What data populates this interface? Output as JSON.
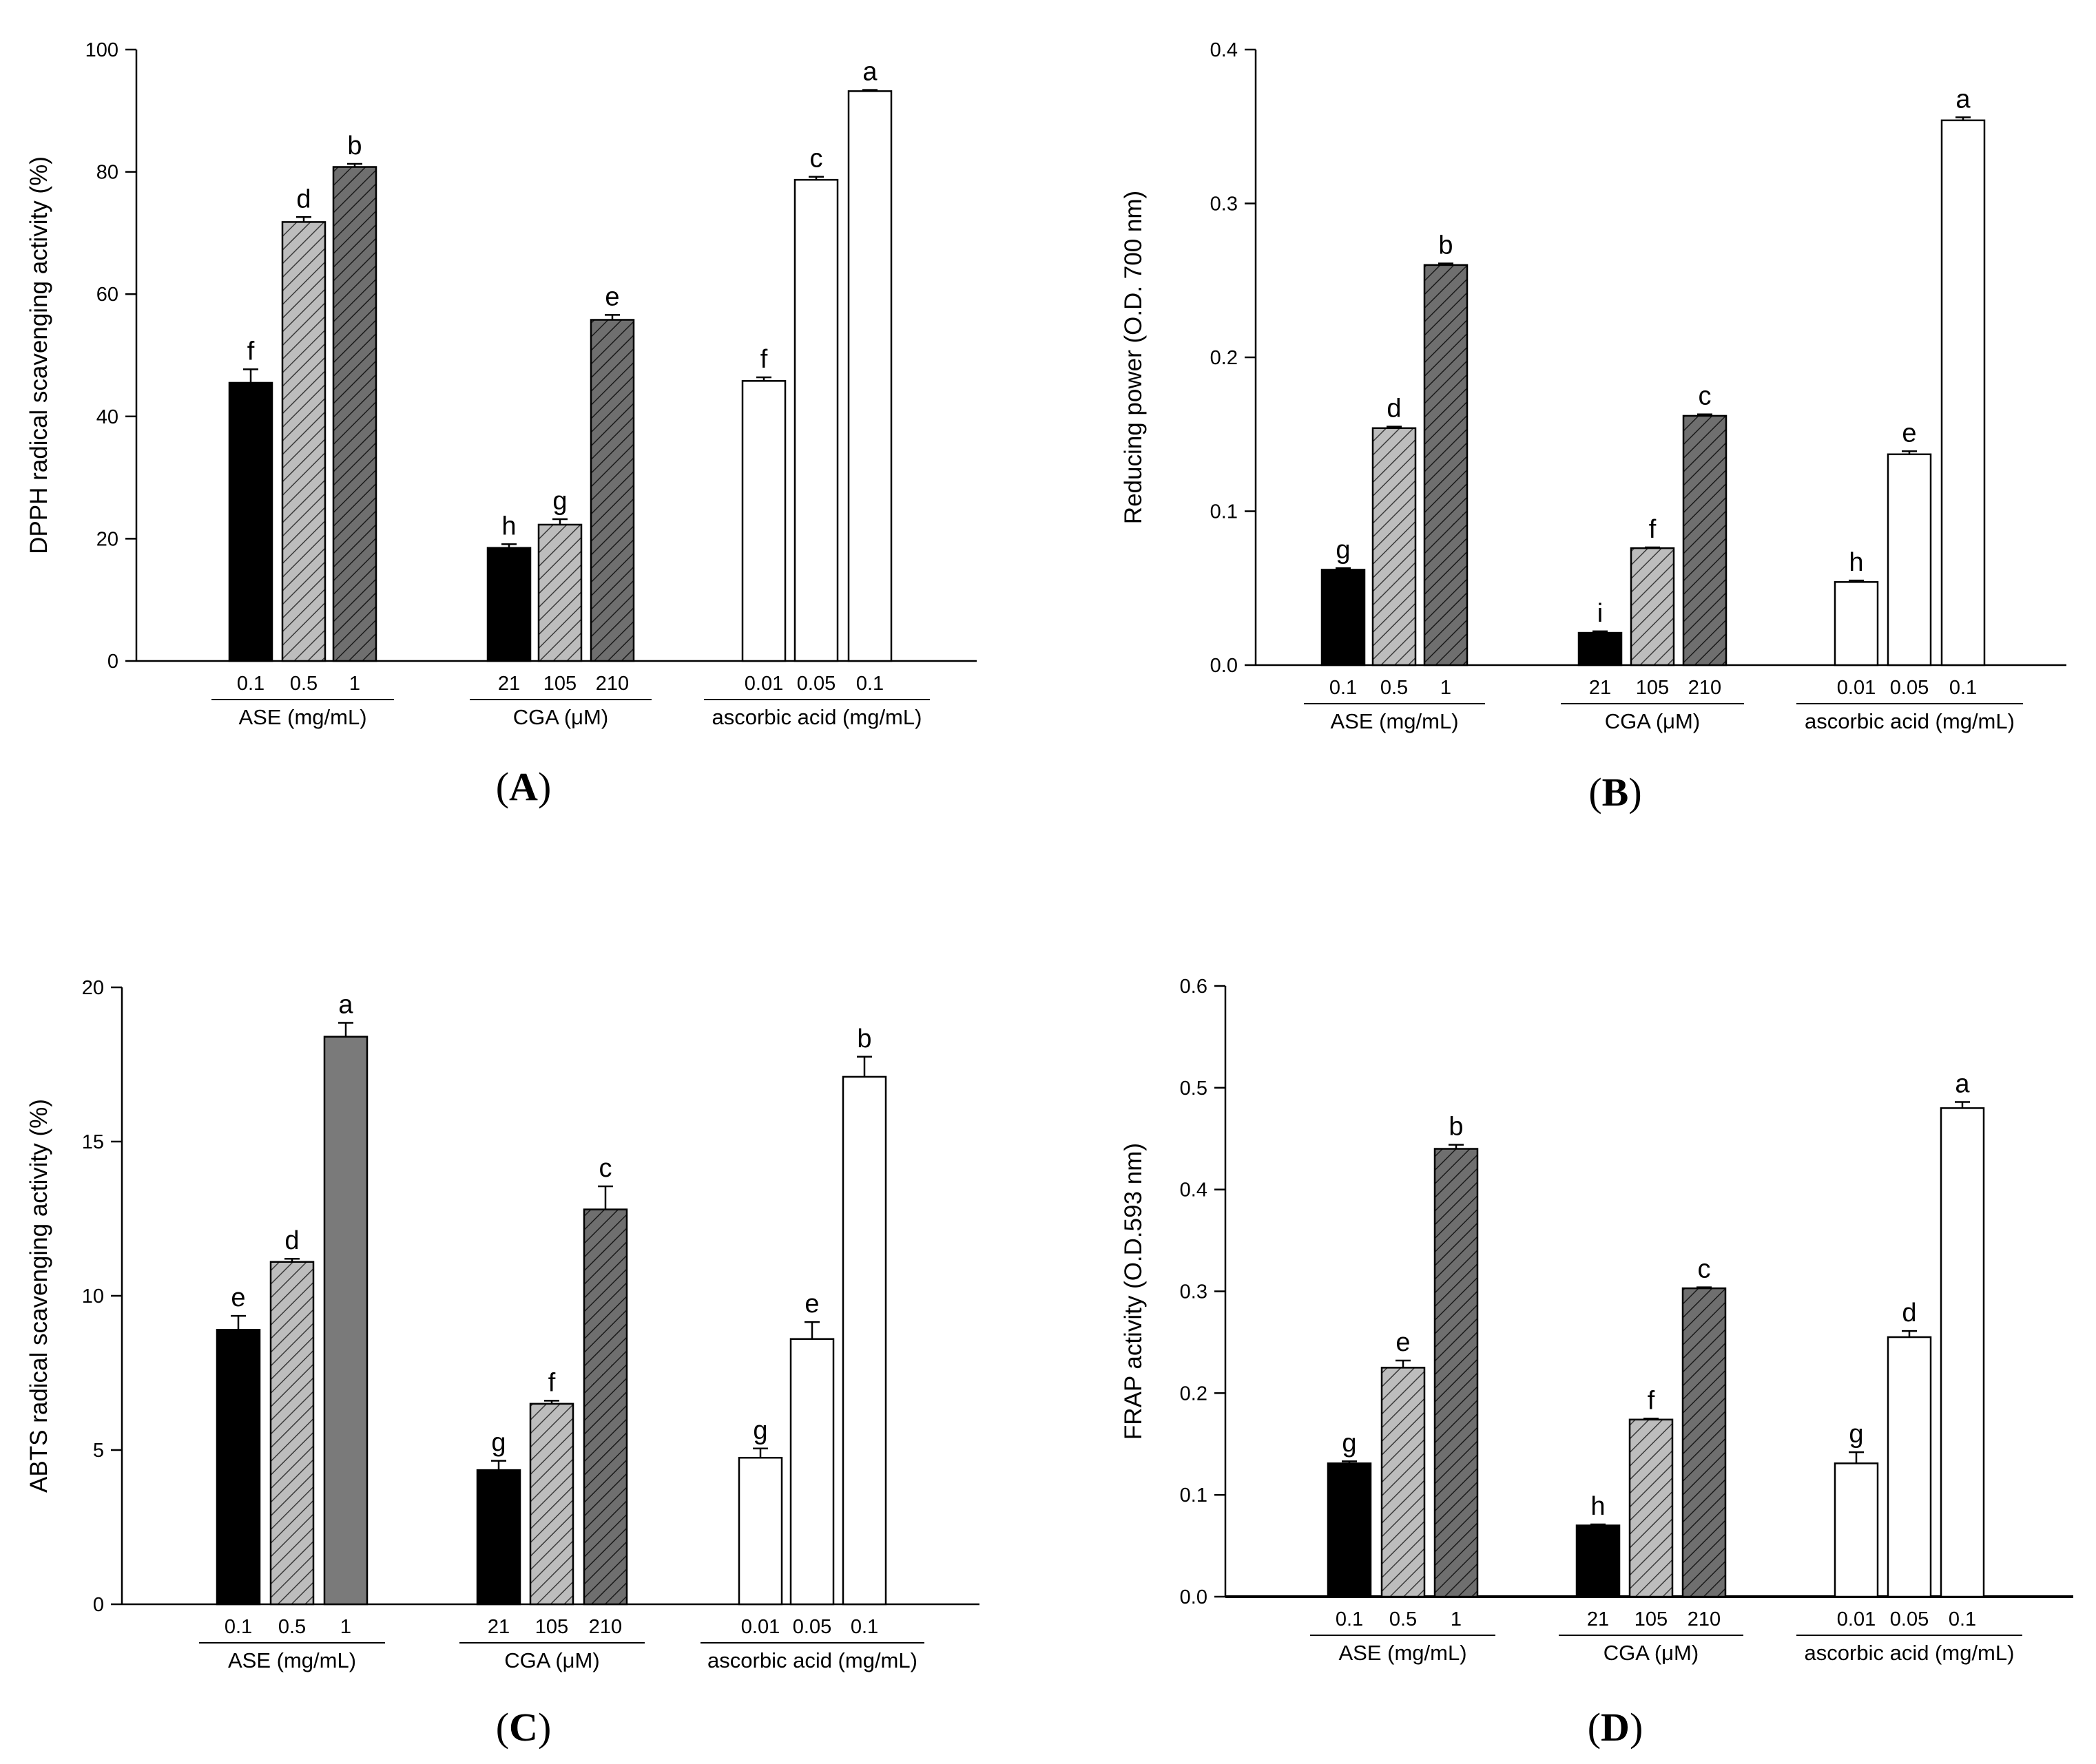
{
  "chart_data": [
    {
      "type": "bar",
      "panel": "A",
      "ylabel": "DPPH radical scavenging activity (%)",
      "ylim": [
        0,
        100
      ],
      "yticks": [
        0,
        20,
        40,
        60,
        80,
        100
      ],
      "ytick_labels": [
        "0",
        "20",
        "40",
        "60",
        "80",
        "100"
      ],
      "groups": [
        {
          "name": "ASE (mg/mL)",
          "categories": [
            "0.1",
            "0.5",
            "1"
          ],
          "values": [
            45.5,
            71.8,
            80.8
          ],
          "errors": [
            2.2,
            0.8,
            0.5
          ],
          "letters": [
            "f",
            "d",
            "b"
          ]
        },
        {
          "name": "CGA (μM)",
          "categories": [
            "21",
            "105",
            "210"
          ],
          "values": [
            18.5,
            22.3,
            55.8
          ],
          "errors": [
            0.6,
            0.9,
            0.8
          ],
          "letters": [
            "h",
            "g",
            "e"
          ]
        },
        {
          "name": "ascorbic acid (mg/mL)",
          "categories": [
            "0.01",
            "0.05",
            "0.1"
          ],
          "values": [
            45.8,
            78.7,
            93.2
          ],
          "errors": [
            0.6,
            0.5,
            0.2
          ],
          "letters": [
            "f",
            "c",
            "a"
          ]
        }
      ]
    },
    {
      "type": "bar",
      "panel": "B",
      "ylabel": "Reducing power (O.D. 700 nm)",
      "ylim": [
        0,
        0.4
      ],
      "yticks": [
        0,
        0.1,
        0.2,
        0.3,
        0.4
      ],
      "ytick_labels": [
        "0.0",
        "0.1",
        "0.2",
        "0.3",
        "0.4"
      ],
      "groups": [
        {
          "name": "ASE (mg/mL)",
          "categories": [
            "0.1",
            "0.5",
            "1"
          ],
          "values": [
            0.062,
            0.154,
            0.26
          ],
          "errors": [
            0.001,
            0.001,
            0.001
          ],
          "letters": [
            "g",
            "d",
            "b"
          ]
        },
        {
          "name": "CGA (μM)",
          "categories": [
            "21",
            "105",
            "210"
          ],
          "values": [
            0.021,
            0.076,
            0.162
          ],
          "errors": [
            0.001,
            0.0005,
            0.001
          ],
          "letters": [
            "i",
            "f",
            "c"
          ]
        },
        {
          "name": "ascorbic acid (mg/mL)",
          "categories": [
            "0.01",
            "0.05",
            "0.1"
          ],
          "values": [
            0.054,
            0.137,
            0.354
          ],
          "errors": [
            0.001,
            0.002,
            0.002
          ],
          "letters": [
            "h",
            "e",
            "a"
          ]
        }
      ]
    },
    {
      "type": "bar",
      "panel": "C",
      "ylabel": "ABTS radical scavenging activity (%)",
      "ylim": [
        0,
        20
      ],
      "yticks": [
        0,
        5,
        10,
        15,
        20
      ],
      "ytick_labels": [
        "0",
        "5",
        "10",
        "15",
        "20"
      ],
      "groups": [
        {
          "name": "ASE (mg/mL)",
          "categories": [
            "0.1",
            "0.5",
            "1"
          ],
          "values": [
            8.9,
            11.1,
            18.4
          ],
          "errors": [
            0.45,
            0.1,
            0.45
          ],
          "letters": [
            "e",
            "d",
            "a"
          ]
        },
        {
          "name": "CGA (μM)",
          "categories": [
            "21",
            "105",
            "210"
          ],
          "values": [
            4.35,
            6.5,
            12.8
          ],
          "errors": [
            0.3,
            0.1,
            0.75
          ],
          "letters": [
            "g",
            "f",
            "c"
          ]
        },
        {
          "name": "ascorbic acid (mg/mL)",
          "categories": [
            "0.01",
            "0.05",
            "0.1"
          ],
          "values": [
            4.75,
            8.6,
            17.1
          ],
          "errors": [
            0.3,
            0.55,
            0.65
          ],
          "letters": [
            "g",
            "e",
            "b"
          ]
        }
      ]
    },
    {
      "type": "bar",
      "panel": "D",
      "ylabel": "FRAP activity (O.D.593 nm)",
      "ylim": [
        0,
        0.6
      ],
      "yticks": [
        0,
        0.1,
        0.2,
        0.3,
        0.4,
        0.5,
        0.6
      ],
      "ytick_labels": [
        "0.0",
        "0.1",
        "0.2",
        "0.3",
        "0.4",
        "0.5",
        "0.6"
      ],
      "groups": [
        {
          "name": "ASE (mg/mL)",
          "categories": [
            "0.1",
            "0.5",
            "1"
          ],
          "values": [
            0.131,
            0.225,
            0.44
          ],
          "errors": [
            0.002,
            0.007,
            0.004
          ],
          "letters": [
            "g",
            "e",
            "b"
          ]
        },
        {
          "name": "CGA (μM)",
          "categories": [
            "21",
            "105",
            "210"
          ],
          "values": [
            0.07,
            0.174,
            0.303
          ],
          "errors": [
            0.001,
            0.001,
            0.001
          ],
          "letters": [
            "h",
            "f",
            "c"
          ]
        },
        {
          "name": "ascorbic acid (mg/mL)",
          "categories": [
            "0.01",
            "0.05",
            "0.1"
          ],
          "values": [
            0.131,
            0.255,
            0.48
          ],
          "errors": [
            0.011,
            0.006,
            0.006
          ],
          "letters": [
            "g",
            "d",
            "a"
          ]
        }
      ]
    }
  ],
  "panel_labels": [
    "A",
    "B",
    "C",
    "D"
  ],
  "colors": {
    "ase_low": "#000000",
    "ase_mid": "#bdbdbd",
    "ase_high": "#6f6f6f",
    "ase_high_solid": "#7a7a7a",
    "open": "#ffffff",
    "stroke": "#000000"
  }
}
